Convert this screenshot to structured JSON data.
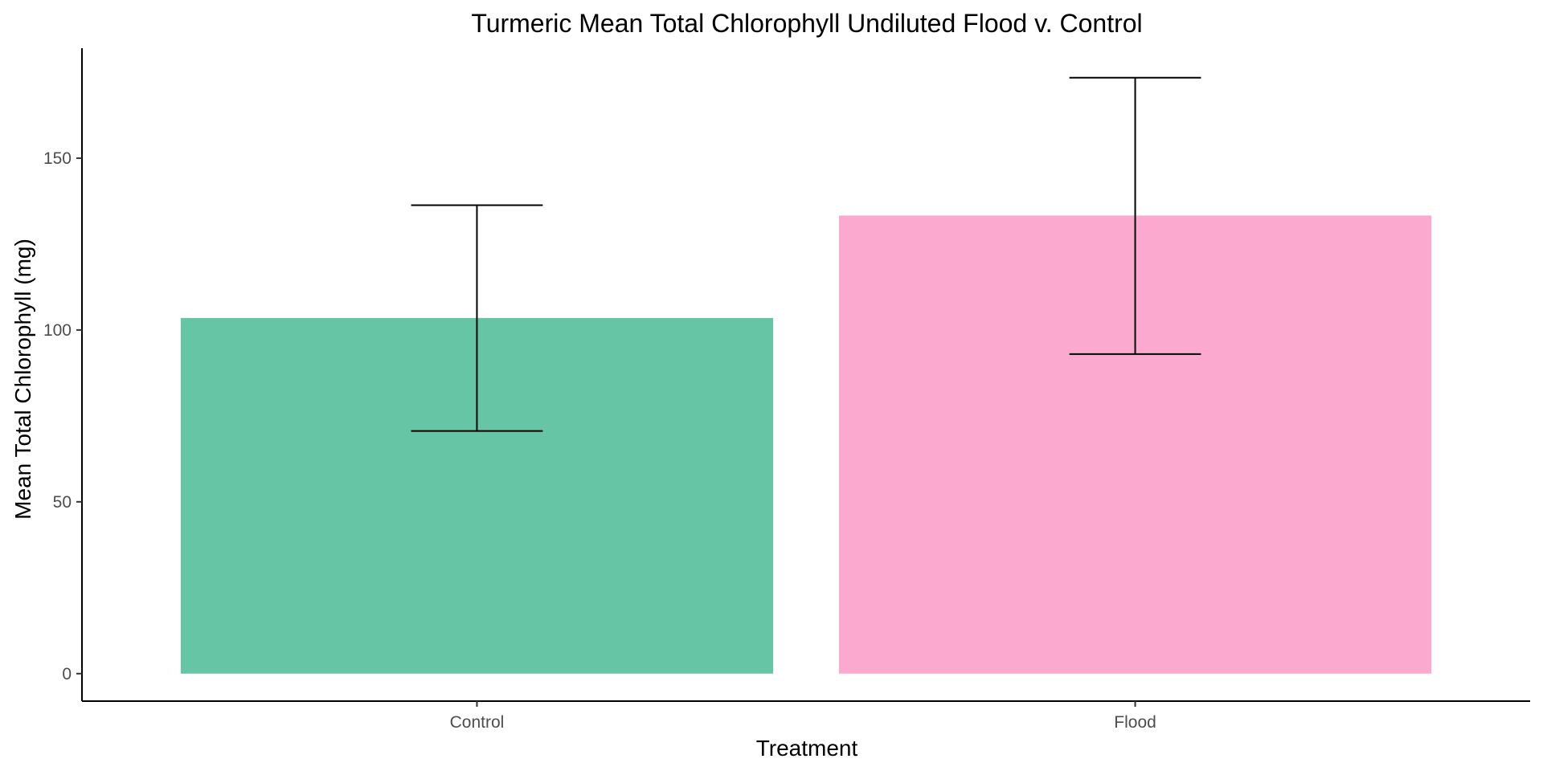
{
  "chart_data": {
    "type": "bar",
    "title": "Turmeric Mean Total Chlorophyll Undiluted Flood v. Control",
    "xlabel": "Treatment",
    "ylabel": "Mean Total Chlorophyll (mg)",
    "categories": [
      "Control",
      "Flood"
    ],
    "values": [
      103.5,
      133.3
    ],
    "error_bars": [
      {
        "lower": 70.6,
        "upper": 136.3
      },
      {
        "lower": 93.0,
        "upper": 173.4
      }
    ],
    "colors": [
      "#66c5a5",
      "#fca9d0"
    ],
    "ylim": [
      -8,
      182
    ],
    "yticks": [
      0,
      50,
      100,
      150
    ],
    "grid": false,
    "legend": "none"
  }
}
